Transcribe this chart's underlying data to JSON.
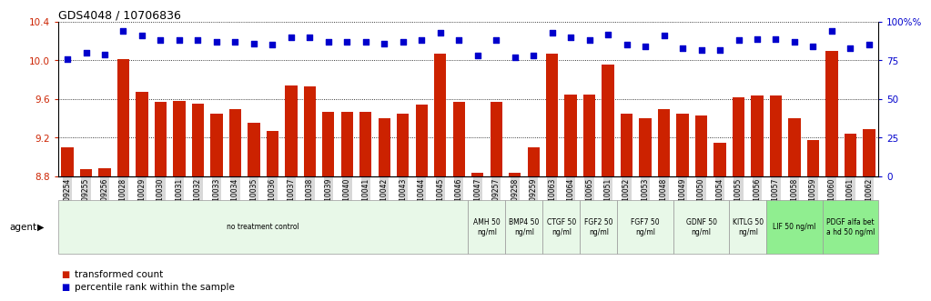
{
  "title": "GDS4048 / 10706836",
  "samples": [
    "GSM509254",
    "GSM509255",
    "GSM509256",
    "GSM510028",
    "GSM510029",
    "GSM510030",
    "GSM510031",
    "GSM510032",
    "GSM510033",
    "GSM510034",
    "GSM510035",
    "GSM510036",
    "GSM510037",
    "GSM510038",
    "GSM510039",
    "GSM510040",
    "GSM510041",
    "GSM510042",
    "GSM510043",
    "GSM510044",
    "GSM510045",
    "GSM510046",
    "GSM510047",
    "GSM509257",
    "GSM509258",
    "GSM509259",
    "GSM510063",
    "GSM510064",
    "GSM510065",
    "GSM510051",
    "GSM510052",
    "GSM510053",
    "GSM510048",
    "GSM510049",
    "GSM510050",
    "GSM510054",
    "GSM510055",
    "GSM510056",
    "GSM510057",
    "GSM510058",
    "GSM510059",
    "GSM510060",
    "GSM510061",
    "GSM510062"
  ],
  "bar_values": [
    9.1,
    8.87,
    8.88,
    10.01,
    9.67,
    9.57,
    9.58,
    9.55,
    9.45,
    9.5,
    9.35,
    9.27,
    9.74,
    9.73,
    9.47,
    9.47,
    9.47,
    9.4,
    9.45,
    9.54,
    10.07,
    9.57,
    8.84,
    9.57,
    8.84,
    9.1,
    10.07,
    9.65,
    9.65,
    9.96,
    9.45,
    9.4,
    9.5,
    9.45,
    9.43,
    9.15,
    9.62,
    9.64,
    9.64,
    9.4,
    9.18,
    10.1,
    9.24,
    9.29
  ],
  "percentile_values": [
    76,
    80,
    79,
    94,
    91,
    88,
    88,
    88,
    87,
    87,
    86,
    85,
    90,
    90,
    87,
    87,
    87,
    86,
    87,
    88,
    93,
    88,
    78,
    88,
    77,
    78,
    93,
    90,
    88,
    92,
    85,
    84,
    91,
    83,
    82,
    82,
    88,
    89,
    89,
    87,
    84,
    94,
    83,
    85
  ],
  "bar_color": "#cc2200",
  "dot_color": "#0000cc",
  "ylim_left": [
    8.8,
    10.4
  ],
  "ylim_right": [
    0,
    100
  ],
  "yticks_left": [
    8.8,
    9.2,
    9.6,
    10.0,
    10.4
  ],
  "yticks_right": [
    0,
    25,
    50,
    75,
    100
  ],
  "agent_groups": [
    {
      "label": "no treatment control",
      "start": 0,
      "end": 22,
      "color": "#e8f8e8"
    },
    {
      "label": "AMH 50\nng/ml",
      "start": 22,
      "end": 24,
      "color": "#e8f8e8"
    },
    {
      "label": "BMP4 50\nng/ml",
      "start": 24,
      "end": 26,
      "color": "#e8f8e8"
    },
    {
      "label": "CTGF 50\nng/ml",
      "start": 26,
      "end": 28,
      "color": "#e8f8e8"
    },
    {
      "label": "FGF2 50\nng/ml",
      "start": 28,
      "end": 30,
      "color": "#e8f8e8"
    },
    {
      "label": "FGF7 50\nng/ml",
      "start": 30,
      "end": 33,
      "color": "#e8f8e8"
    },
    {
      "label": "GDNF 50\nng/ml",
      "start": 33,
      "end": 36,
      "color": "#e8f8e8"
    },
    {
      "label": "KITLG 50\nng/ml",
      "start": 36,
      "end": 38,
      "color": "#e8f8e8"
    },
    {
      "label": "LIF 50 ng/ml",
      "start": 38,
      "end": 41,
      "color": "#90ee90"
    },
    {
      "label": "PDGF alfa bet\na hd 50 ng/ml",
      "start": 41,
      "end": 44,
      "color": "#90ee90"
    }
  ],
  "legend_items": [
    {
      "label": "transformed count",
      "color": "#cc2200"
    },
    {
      "label": "percentile rank within the sample",
      "color": "#0000cc"
    }
  ],
  "background_color": "#ffffff",
  "xticklabel_bg": "#d8d8d8"
}
